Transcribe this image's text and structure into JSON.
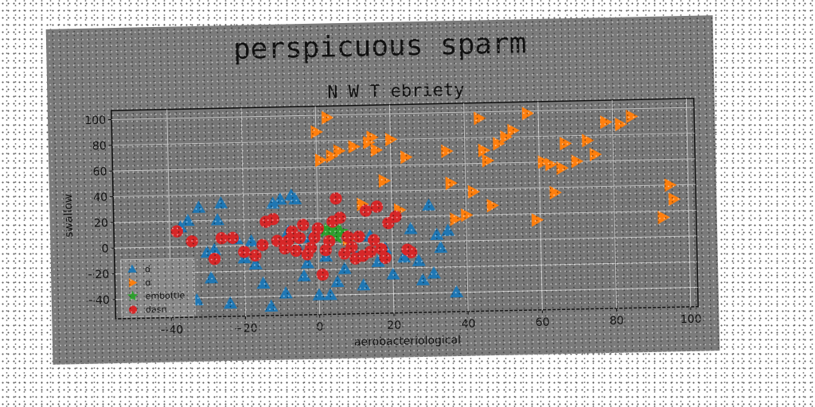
{
  "figure_title": "perspicuous sparm",
  "chart_data": {
    "type": "scatter",
    "title": "N W T ebriety",
    "xlabel": "aerobacteriological",
    "ylabel": "swallow",
    "xlim": [
      -55,
      102
    ],
    "ylim": [
      -55,
      107
    ],
    "xticks": [
      -40,
      -20,
      0,
      20,
      40,
      60,
      80,
      100
    ],
    "yticks": [
      -40,
      -20,
      0,
      20,
      40,
      60,
      80,
      100
    ],
    "grid": true,
    "legend_position": "lower-left",
    "series": [
      {
        "name": "d",
        "marker": "triangle-up",
        "color": "#1f77b4",
        "points": [
          [
            -37,
            15
          ],
          [
            -35,
            20
          ],
          [
            -33,
            -42
          ],
          [
            -32,
            30
          ],
          [
            -30,
            -5
          ],
          [
            -29,
            -25
          ],
          [
            -28,
            -3
          ],
          [
            -27,
            20
          ],
          [
            -26,
            33
          ],
          [
            -24,
            -45
          ],
          [
            -22,
            5
          ],
          [
            -20,
            -10
          ],
          [
            -18,
            3
          ],
          [
            -17,
            -15
          ],
          [
            -15,
            -30
          ],
          [
            -13,
            -48
          ],
          [
            -12,
            32
          ],
          [
            -10,
            35
          ],
          [
            -9,
            -38
          ],
          [
            -8,
            10
          ],
          [
            -7,
            38
          ],
          [
            -6,
            35
          ],
          [
            -5,
            -5
          ],
          [
            -4,
            -25
          ],
          [
            -3,
            -15
          ],
          [
            -2,
            5
          ],
          [
            0,
            -40
          ],
          [
            2,
            -10
          ],
          [
            3,
            -40
          ],
          [
            5,
            -30
          ],
          [
            7,
            -20
          ],
          [
            10,
            -10
          ],
          [
            12,
            -33
          ],
          [
            14,
            5
          ],
          [
            16,
            -15
          ],
          [
            18,
            -5
          ],
          [
            20,
            -25
          ],
          [
            23,
            -12
          ],
          [
            25,
            10
          ],
          [
            27,
            -15
          ],
          [
            28,
            -30
          ],
          [
            30,
            28
          ],
          [
            31,
            -25
          ],
          [
            32,
            5
          ],
          [
            33,
            -5
          ],
          [
            35,
            8
          ],
          [
            37,
            -40
          ]
        ]
      },
      {
        "name": "d",
        "marker": "triangle-right",
        "color": "#ff7f0e",
        "points": [
          [
            0,
            87
          ],
          [
            1,
            65
          ],
          [
            3,
            98
          ],
          [
            4,
            68
          ],
          [
            6,
            72
          ],
          [
            8,
            3
          ],
          [
            10,
            75
          ],
          [
            12,
            30
          ],
          [
            14,
            78
          ],
          [
            15,
            82
          ],
          [
            16,
            72
          ],
          [
            18,
            48
          ],
          [
            20,
            80
          ],
          [
            22,
            25
          ],
          [
            24,
            66
          ],
          [
            35,
            70
          ],
          [
            36,
            45
          ],
          [
            37,
            17
          ],
          [
            40,
            20
          ],
          [
            42,
            38
          ],
          [
            44,
            95
          ],
          [
            45,
            70
          ],
          [
            46,
            62
          ],
          [
            47,
            27
          ],
          [
            49,
            75
          ],
          [
            51,
            80
          ],
          [
            53,
            85
          ],
          [
            57,
            98
          ],
          [
            59,
            15
          ],
          [
            61,
            60
          ],
          [
            63,
            58
          ],
          [
            64,
            36
          ],
          [
            66,
            55
          ],
          [
            67,
            74
          ],
          [
            70,
            60
          ],
          [
            73,
            76
          ],
          [
            75,
            65
          ],
          [
            78,
            90
          ],
          [
            82,
            88
          ],
          [
            85,
            94
          ],
          [
            93,
            15
          ],
          [
            95,
            40
          ],
          [
            96,
            29
          ]
        ]
      },
      {
        "name": "embottle",
        "marker": "star",
        "color": "#2ca02c",
        "points": [
          [
            2,
            10
          ],
          [
            3,
            8
          ],
          [
            4,
            12
          ],
          [
            5,
            5
          ],
          [
            6,
            9
          ]
        ]
      },
      {
        "name": "dasn",
        "marker": "circle",
        "color": "#d62728",
        "points": [
          [
            -38,
            12
          ],
          [
            -34,
            4
          ],
          [
            -28,
            -10
          ],
          [
            -26,
            6
          ],
          [
            -23,
            6
          ],
          [
            -20,
            -5
          ],
          [
            -17,
            -8
          ],
          [
            -15,
            0
          ],
          [
            -14,
            18
          ],
          [
            -12,
            20
          ],
          [
            -11,
            3
          ],
          [
            -9,
            -3
          ],
          [
            -8,
            3
          ],
          [
            -7,
            10
          ],
          [
            -6,
            -5
          ],
          [
            -5,
            5
          ],
          [
            -4,
            15
          ],
          [
            -3,
            -8
          ],
          [
            -2,
            -3
          ],
          [
            -1,
            5
          ],
          [
            0,
            12
          ],
          [
            1,
            -24
          ],
          [
            2,
            -5
          ],
          [
            3,
            2
          ],
          [
            4,
            17
          ],
          [
            5,
            35
          ],
          [
            6,
            20
          ],
          [
            7,
            -8
          ],
          [
            8,
            5
          ],
          [
            9,
            -3
          ],
          [
            10,
            -12
          ],
          [
            11,
            5
          ],
          [
            12,
            -10
          ],
          [
            13,
            25
          ],
          [
            14,
            -7
          ],
          [
            15,
            2
          ],
          [
            16,
            28
          ],
          [
            17,
            -5
          ],
          [
            18,
            -12
          ],
          [
            19,
            15
          ],
          [
            21,
            20
          ],
          [
            24,
            -6
          ],
          [
            25,
            -8
          ]
        ]
      }
    ]
  }
}
